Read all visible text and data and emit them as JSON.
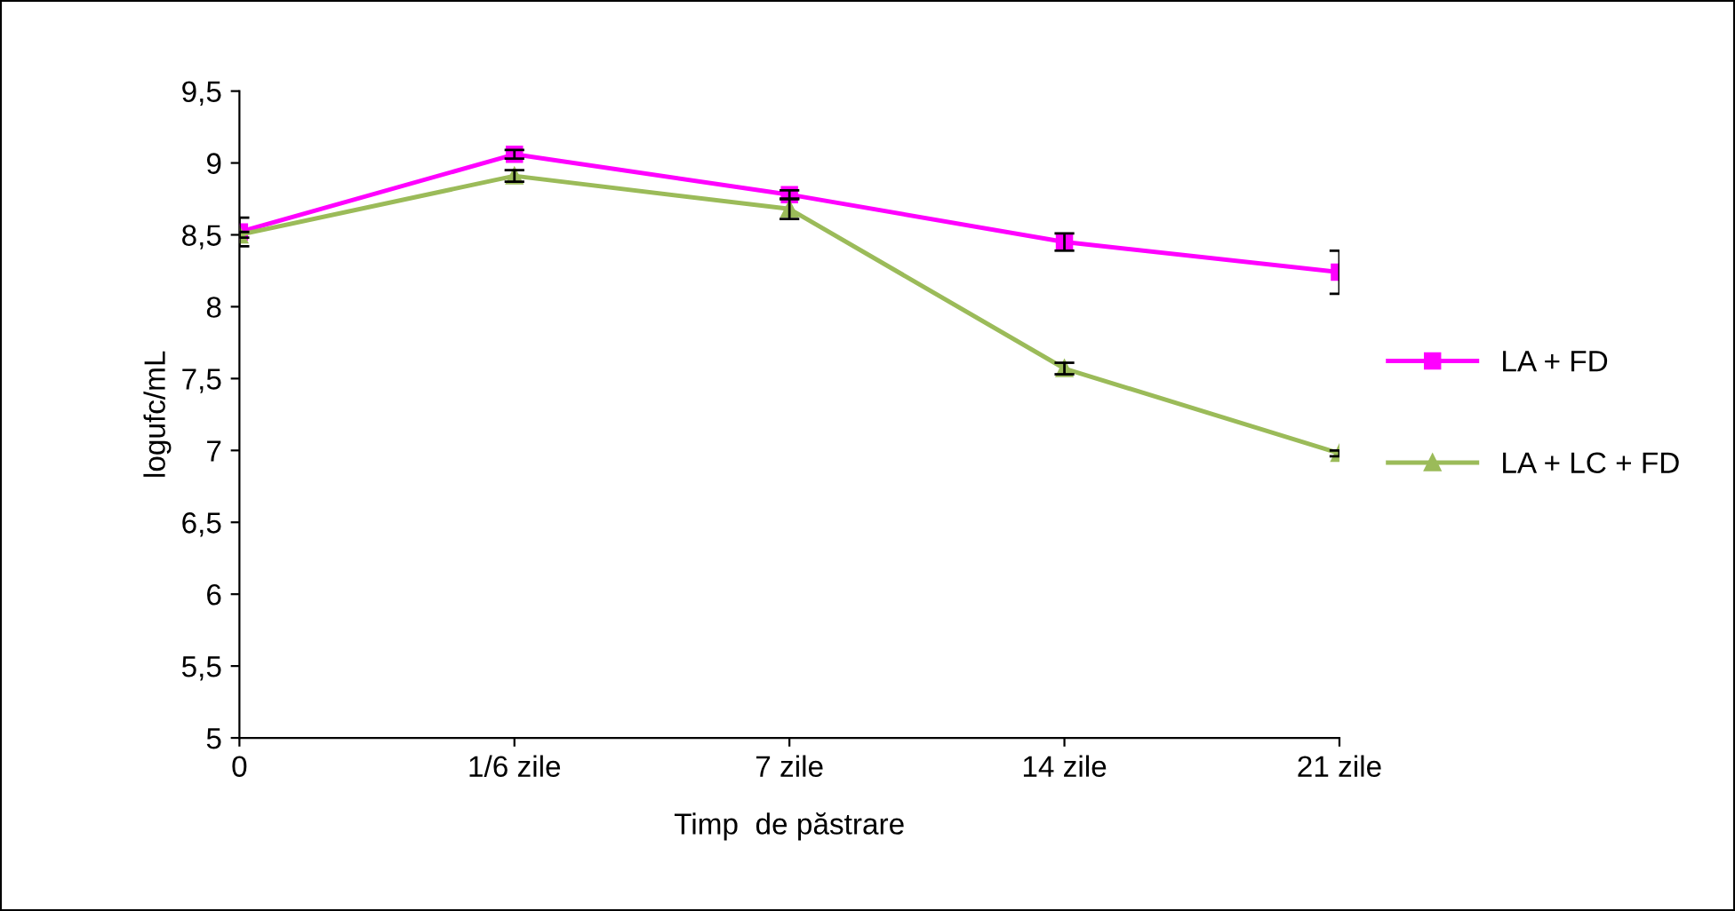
{
  "chart_data": {
    "type": "line",
    "xlabel": "Timp  de păstrare",
    "ylabel": "logufc/mL",
    "categories": [
      "0",
      "1/6 zile",
      "7 zile",
      "14 zile",
      "21 zile"
    ],
    "series": [
      {
        "name": "LA + FD",
        "color": "#ff00ff",
        "marker": "square",
        "values": [
          8.52,
          9.06,
          8.78,
          8.45,
          8.24
        ],
        "errors": [
          0.1,
          0.03,
          0.03,
          0.06,
          0.15
        ]
      },
      {
        "name": "LA + LC + FD",
        "color": "#9bbb59",
        "marker": "triangle",
        "values": [
          8.5,
          8.91,
          8.68,
          7.57,
          6.98
        ],
        "errors": [
          0.02,
          0.04,
          0.07,
          0.04,
          0.02
        ]
      }
    ],
    "ylim": [
      5,
      9.5
    ],
    "yticks": [
      5,
      {
        "value": 5.5,
        "label": "5,5"
      },
      6,
      {
        "value": 6.5,
        "label": "6,5"
      },
      7,
      {
        "value": 7.5,
        "label": "7,5"
      },
      8,
      {
        "value": 8.5,
        "label": "8,5"
      },
      9,
      {
        "value": 9.5,
        "label": "9,5"
      }
    ],
    "grid": false,
    "legend": "right",
    "line_style": "solid"
  }
}
